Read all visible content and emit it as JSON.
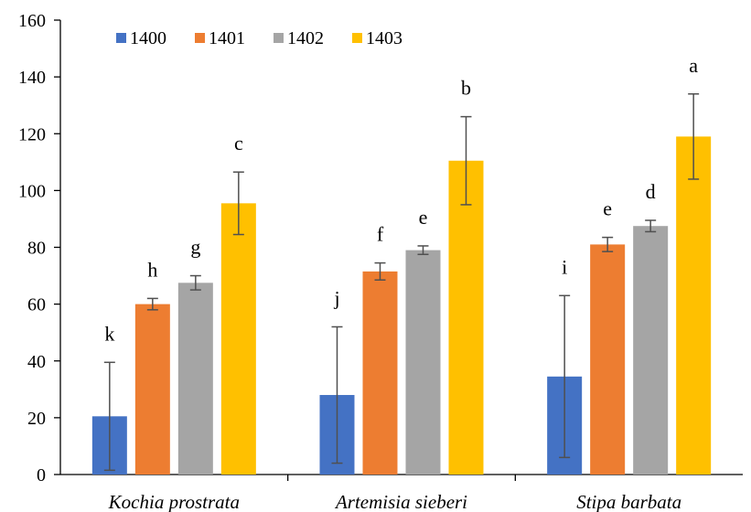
{
  "chart_data": {
    "type": "bar",
    "categories": [
      "Kochia prostrata",
      "Artemisia sieberi",
      "Stipa barbata"
    ],
    "series": [
      {
        "name": "1400",
        "color": "#4472C4",
        "values": [
          20.5,
          28,
          34.5
        ],
        "errors": [
          19,
          24,
          28.5
        ]
      },
      {
        "name": "1401",
        "color": "#ED7D31",
        "values": [
          60,
          71.5,
          81
        ],
        "errors": [
          2,
          3,
          2.5
        ]
      },
      {
        "name": "1402",
        "color": "#A5A5A5",
        "values": [
          67.5,
          79,
          87.5
        ],
        "errors": [
          2.5,
          1.5,
          2
        ]
      },
      {
        "name": "1403",
        "color": "#FFC000",
        "values": [
          95.5,
          110.5,
          119
        ],
        "errors": [
          11,
          15.5,
          15
        ]
      }
    ],
    "significance_letters": [
      [
        "k",
        "h",
        "g",
        "c"
      ],
      [
        "j",
        "f",
        "e",
        "b"
      ],
      [
        "i",
        "e",
        "d",
        "a"
      ]
    ],
    "yticks": [
      "0",
      "20",
      "40",
      "60",
      "80",
      "100",
      "120",
      "140",
      "160"
    ],
    "ylim": [
      0,
      160
    ],
    "title": "",
    "xlabel": "",
    "ylabel": "",
    "legend_position": "top-left",
    "grid": false
  }
}
